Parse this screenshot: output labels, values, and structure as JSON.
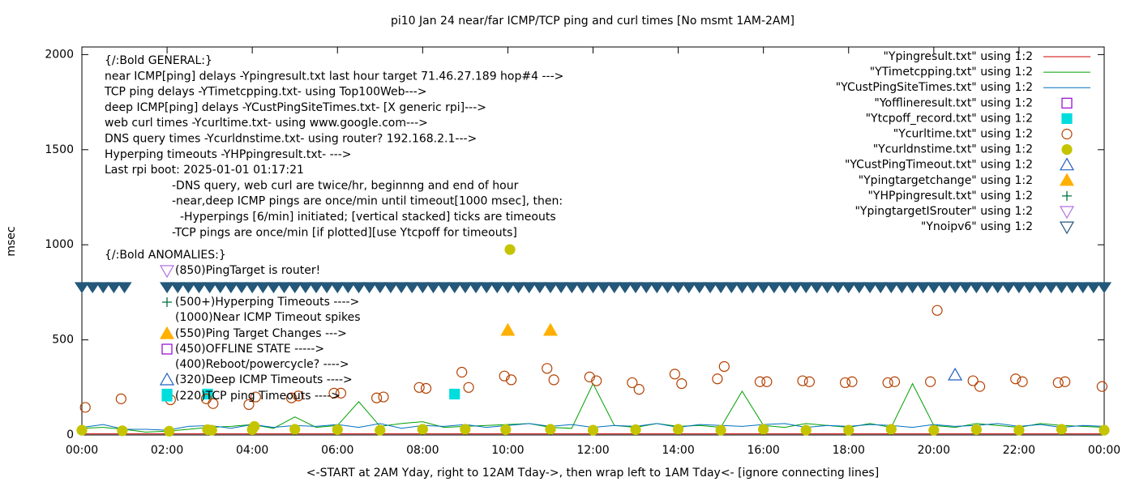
{
  "chart_data": {
    "type": "multi",
    "title": "pi10 Jan 24  near/far ICMP/TCP ping and curl times [No msmt 1AM-2AM]",
    "x_label": "<-START at 2AM Yday, right to 12AM Tday->, then wrap left to 1AM Tday<- [ignore connecting lines]",
    "y_label": "msec",
    "xlim": [
      0,
      24
    ],
    "ylim": [
      0,
      2040
    ],
    "xticks": [
      {
        "value": 0,
        "label": "00:00"
      },
      {
        "value": 2,
        "label": "02:00"
      },
      {
        "value": 4,
        "label": "04:00"
      },
      {
        "value": 6,
        "label": "06:00"
      },
      {
        "value": 8,
        "label": "08:00"
      },
      {
        "value": 10,
        "label": "10:00"
      },
      {
        "value": 12,
        "label": "12:00"
      },
      {
        "value": 14,
        "label": "14:00"
      },
      {
        "value": 16,
        "label": "16:00"
      },
      {
        "value": 18,
        "label": "18:00"
      },
      {
        "value": 20,
        "label": "20:00"
      },
      {
        "value": 22,
        "label": "22:00"
      },
      {
        "value": 24,
        "label": "00:00"
      }
    ],
    "yticks": [
      0,
      500,
      1000,
      1500,
      2000
    ],
    "legend": "top-right",
    "annotations": [
      "{/:Bold GENERAL:}",
      "near ICMP[ping] delays -Ypingresult.txt last hour target 71.46.27.189 hop#4 --->",
      "TCP ping delays -YTimetcpping.txt- using Top100Web--->",
      "deep ICMP[ping] delays -YCustPingSiteTimes.txt- [X generic rpi]--->",
      "web curl times -Ycurltime.txt- using www.google.com--->",
      "DNS query times -Ycurldnstime.txt- using router? 192.168.2.1--->",
      "Hyperping timeouts -YHPpingresult.txt- --->",
      "Last rpi boot: 2025-01-01 01:17:21",
      "-DNS query, web curl are twice/hr, beginnng and end of hour",
      "-near,deep ICMP pings are once/min until timeout[1000 msec], then:",
      "-Hyperpings [6/min] initiated; [vertical stacked] ticks are timeouts",
      "-TCP pings are once/min [if plotted][use Ytcpoff for timeouts]",
      "{/:Bold ANOMALIES:}"
    ],
    "anomalies": [
      "(850)PingTarget is router!",
      "(500+)Hyperping Timeouts ---->",
      "(1000)Near ICMP Timeout spikes",
      "(550)Ping Target Changes --->",
      "(450)OFFLINE STATE ----->",
      "(400)Reboot/powercycle? ---->",
      "(320)Deep ICMP Timeouts ---->",
      "(220)TCP ping Timeouts ---->"
    ],
    "series": [
      {
        "name": "\"Ypingresult.txt\" using 1:2",
        "color": "#cc0000",
        "marker": "line",
        "x": [
          0,
          2,
          4,
          6,
          8,
          10,
          12,
          14,
          16,
          18,
          20,
          22,
          24
        ],
        "values": [
          6,
          6,
          6,
          6,
          6,
          6,
          6,
          6,
          6,
          6,
          6,
          6,
          6
        ]
      },
      {
        "name": "\"YTimetcpping.txt\" using 1:2",
        "color": "#00a000",
        "marker": "line",
        "x": [
          0,
          0.5,
          1,
          1.5,
          2,
          2.5,
          3,
          3.5,
          4,
          4.5,
          5,
          5.5,
          6,
          6.5,
          7,
          7.5,
          8,
          8.5,
          9,
          9.5,
          10,
          10.5,
          11,
          11.5,
          12,
          12.5,
          13,
          13.5,
          14,
          14.5,
          15,
          15.5,
          16,
          16.5,
          17,
          17.5,
          18,
          18.5,
          19,
          19.5,
          20,
          20.5,
          21,
          21.5,
          22,
          22.5,
          23,
          23.5,
          24
        ],
        "values": [
          35,
          40,
          30,
          15,
          20,
          30,
          40,
          45,
          55,
          35,
          95,
          40,
          50,
          175,
          45,
          60,
          70,
          40,
          45,
          50,
          55,
          60,
          40,
          35,
          270,
          50,
          40,
          60,
          45,
          50,
          40,
          230,
          50,
          40,
          60,
          50,
          40,
          60,
          40,
          270,
          50,
          40,
          60,
          50,
          40,
          60,
          50,
          45,
          40
        ]
      },
      {
        "name": "\"YCustPingSiteTimes.txt\" using 1:2",
        "color": "#0070c0",
        "marker": "line",
        "x": [
          0,
          0.5,
          1,
          1.5,
          2,
          2.5,
          3,
          3.5,
          4,
          4.5,
          5,
          5.5,
          6,
          6.5,
          7,
          7.5,
          8,
          8.5,
          9,
          9.5,
          10,
          10.5,
          11,
          11.5,
          12,
          12.5,
          13,
          13.5,
          14,
          14.5,
          15,
          15.5,
          16,
          16.5,
          17,
          17.5,
          18,
          18.5,
          19,
          19.5,
          20,
          20.5,
          21,
          21.5,
          22,
          22.5,
          23,
          23.5,
          24
        ],
        "values": [
          40,
          55,
          30,
          30,
          25,
          45,
          50,
          35,
          55,
          40,
          50,
          45,
          55,
          40,
          60,
          35,
          50,
          45,
          55,
          40,
          50,
          60,
          45,
          55,
          40,
          50,
          45,
          60,
          40,
          55,
          50,
          45,
          55,
          60,
          40,
          50,
          45,
          55,
          50,
          40,
          55,
          45,
          50,
          60,
          45,
          55,
          40,
          50,
          45
        ]
      },
      {
        "name": "\"Yofflineresult.txt\" using 1:2",
        "color": "#9400d3",
        "marker": "open-square",
        "x": [],
        "values": []
      },
      {
        "name": "\"Ytcpoff_record.txt\" using 1:2",
        "color": "#00dddd",
        "marker": "filled-square",
        "x": [
          2,
          2.95,
          8.75
        ],
        "values": [
          215,
          215,
          215
        ]
      },
      {
        "name": "\"Ycurltime.txt\" using 1:2",
        "color": "#b34000",
        "marker": "open-circle",
        "x": [
          0.08,
          0.92,
          2.08,
          2.92,
          3.08,
          3.92,
          4.08,
          4.92,
          5.08,
          5.92,
          6.08,
          6.92,
          7.08,
          7.92,
          8.08,
          8.92,
          9.08,
          9.92,
          10.08,
          10.92,
          11.08,
          11.92,
          12.08,
          12.92,
          13.08,
          13.92,
          14.08,
          14.92,
          15.08,
          15.92,
          16.08,
          16.92,
          17.08,
          17.92,
          18.08,
          18.92,
          19.08,
          19.92,
          20.08,
          20.92,
          21.08,
          21.92,
          22.08,
          22.92,
          23.08,
          23.95
        ],
        "values": [
          145,
          190,
          185,
          190,
          165,
          160,
          200,
          195,
          205,
          220,
          220,
          195,
          200,
          250,
          245,
          330,
          250,
          310,
          290,
          350,
          290,
          305,
          285,
          275,
          240,
          320,
          270,
          295,
          360,
          280,
          280,
          285,
          280,
          275,
          280,
          275,
          280,
          280,
          655,
          285,
          255,
          295,
          280,
          275,
          280,
          255
        ]
      },
      {
        "name": "\"Ycurldnstime.txt\" using 1:2",
        "color": "#c4c400",
        "marker": "filled-circle",
        "x": [
          0,
          0.95,
          2.05,
          2.95,
          3.05,
          4,
          4.05,
          5,
          6,
          7,
          8,
          9,
          9.95,
          10.05,
          11,
          12,
          13,
          14,
          15,
          16,
          17,
          18,
          19,
          20,
          21,
          22,
          23,
          24
        ],
        "values": [
          25,
          22,
          20,
          28,
          25,
          28,
          45,
          30,
          28,
          25,
          30,
          30,
          28,
          975,
          30,
          25,
          28,
          30,
          25,
          30,
          25,
          25,
          30,
          25,
          28,
          25,
          30,
          25
        ]
      },
      {
        "name": "\"YCustPingTimeout.txt\" using 1:2",
        "color": "#2060c0",
        "marker": "open-triangle",
        "x": [
          20.5
        ],
        "values": [
          315
        ]
      },
      {
        "name": "\"Ypingtargetchange\" using 1:2",
        "color": "#ffb000",
        "marker": "filled-triangle",
        "x": [
          10,
          11
        ],
        "values": [
          550,
          550
        ]
      },
      {
        "name": "\"YHPpingresult.txt\" using 1:2",
        "color": "#007040",
        "marker": "plus",
        "x": [],
        "values": []
      },
      {
        "name": "\"YpingtargetISrouter\" using 1:2",
        "color": "#b070e0",
        "marker": "open-down-triangle",
        "x": [],
        "values": []
      },
      {
        "name": "\"Ynoipv6\" using 1:2",
        "color": "#24587a",
        "marker": "down-triangle",
        "x": [
          0,
          0.25,
          0.5,
          0.75,
          1,
          2,
          2.25,
          2.5,
          2.75,
          3,
          3.25,
          3.5,
          3.75,
          4,
          4.25,
          4.5,
          4.75,
          5,
          5.25,
          5.5,
          5.75,
          6,
          6.25,
          6.5,
          6.75,
          7,
          7.25,
          7.5,
          7.75,
          8,
          8.25,
          8.5,
          8.75,
          9,
          9.25,
          9.5,
          9.75,
          10,
          10.25,
          10.5,
          10.75,
          11,
          11.25,
          11.5,
          11.75,
          12,
          12.25,
          12.5,
          12.75,
          13,
          13.25,
          13.5,
          13.75,
          14,
          14.25,
          14.5,
          14.75,
          15,
          15.25,
          15.5,
          15.75,
          16,
          16.25,
          16.5,
          16.75,
          17,
          17.25,
          17.5,
          17.75,
          18,
          18.25,
          18.5,
          18.75,
          19,
          19.25,
          19.5,
          19.75,
          20,
          20.25,
          20.5,
          20.75,
          21,
          21.25,
          21.5,
          21.75,
          22,
          22.25,
          22.5,
          22.75,
          23,
          23.25,
          23.5,
          23.75,
          24
        ],
        "values": [
          775,
          775,
          775,
          775,
          775,
          775,
          775,
          775,
          775,
          775,
          775,
          775,
          775,
          775,
          775,
          775,
          775,
          775,
          775,
          775,
          775,
          775,
          775,
          775,
          775,
          775,
          775,
          775,
          775,
          775,
          775,
          775,
          775,
          775,
          775,
          775,
          775,
          775,
          775,
          775,
          775,
          775,
          775,
          775,
          775,
          775,
          775,
          775,
          775,
          775,
          775,
          775,
          775,
          775,
          775,
          775,
          775,
          775,
          775,
          775,
          775,
          775,
          775,
          775,
          775,
          775,
          775,
          775,
          775,
          775,
          775,
          775,
          775,
          775,
          775,
          775,
          775,
          775,
          775,
          775,
          775,
          775,
          775,
          775,
          775,
          775,
          775,
          775,
          775,
          775,
          775,
          775,
          775,
          775
        ]
      }
    ]
  }
}
